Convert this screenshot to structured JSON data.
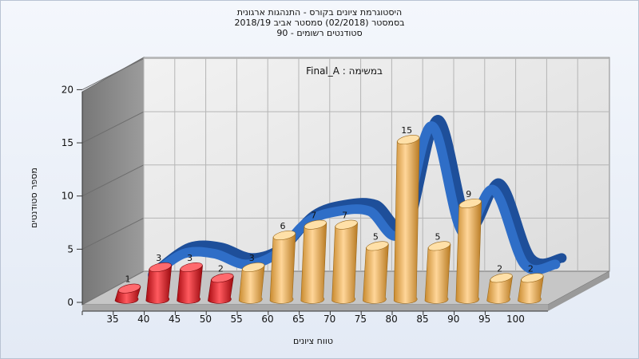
{
  "chart_data": {
    "type": "bar",
    "title_lines": [
      "היסטוגרמת ציונים בקורס - התנהגות ארגונית",
      "בסמסטר  (02/2018)  סמסטר אביב 2018/19",
      "סטודנטים רשומים - 90"
    ],
    "annotation": "במשימה : Final_A",
    "xlabel": "טווח ציונים",
    "ylabel": "מספר סטודנטים",
    "categories": [
      "35",
      "40",
      "45",
      "50",
      "55",
      "60",
      "65",
      "70",
      "75",
      "80",
      "85",
      "90",
      "95",
      "100"
    ],
    "values": [
      1,
      3,
      3,
      2,
      3,
      6,
      7,
      7,
      5,
      15,
      5,
      9,
      2,
      2
    ],
    "failing_categories": [
      "35",
      "40",
      "45",
      "50"
    ],
    "yticks": [
      0,
      5,
      10,
      15,
      20
    ],
    "ylim": [
      0,
      20
    ],
    "grid": true,
    "colors": {
      "failing_bar": "#e0141b",
      "passing_bar": "#f0b050",
      "trend_ribbon": "#2f6ec7",
      "back_wall": "#e8e8e8",
      "side_wall": "#8a8a8a",
      "floor": "#c4c4c4"
    }
  }
}
